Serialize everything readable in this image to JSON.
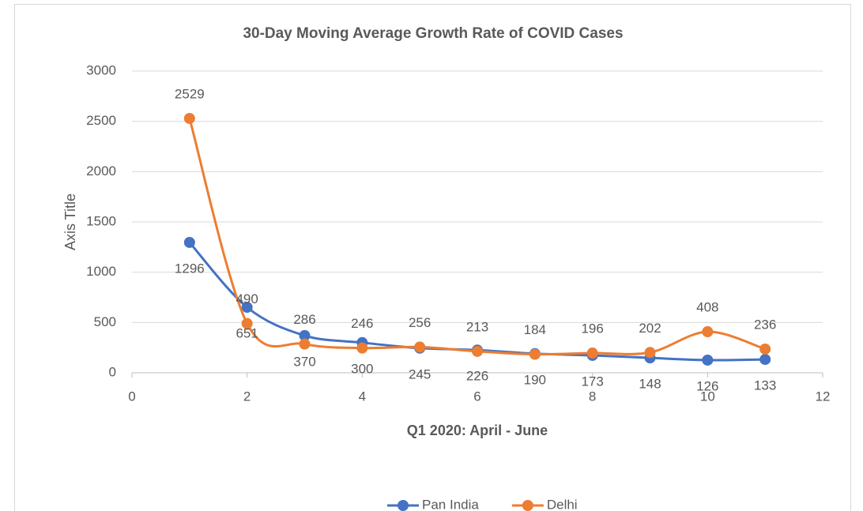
{
  "chart_data": {
    "type": "line",
    "title": "30-Day Moving Average Growth Rate of COVID Cases",
    "x_label": "Q1 2020: April - June",
    "y_label": "Axis Title",
    "x": [
      1,
      2,
      3,
      4,
      5,
      6,
      7,
      8,
      9,
      10,
      11
    ],
    "series": [
      {
        "name": "Pan India",
        "color": "#4472c4",
        "values": [
          1296,
          651,
          370,
          300,
          245,
          226,
          190,
          173,
          148,
          126,
          133
        ]
      },
      {
        "name": "Delhi",
        "color": "#ed7d31",
        "values": [
          2529,
          490,
          286,
          246,
          256,
          213,
          184,
          196,
          202,
          408,
          236
        ]
      }
    ],
    "xlim": [
      0,
      12
    ],
    "xticks": [
      0,
      2,
      4,
      6,
      8,
      10,
      12
    ],
    "ylim": [
      0,
      3000
    ],
    "yticks": [
      0,
      500,
      1000,
      1500,
      2000,
      2500,
      3000
    ],
    "grid": true,
    "smooth": true,
    "legend": "bottom"
  }
}
